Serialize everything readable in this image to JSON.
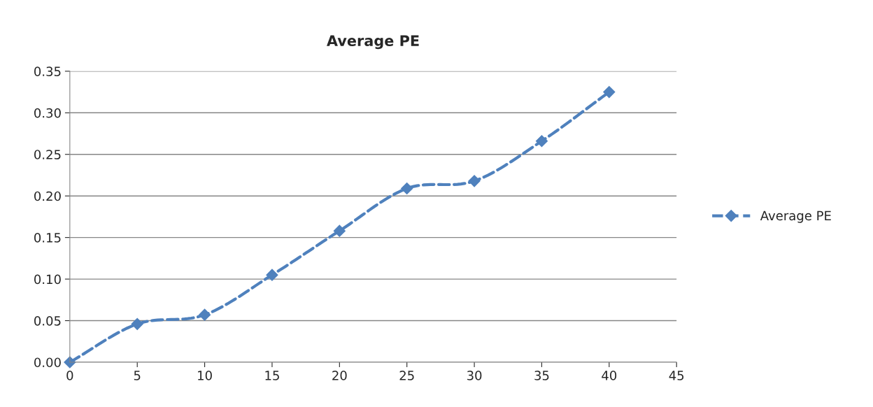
{
  "chart_data": {
    "type": "line",
    "title": "Average PE",
    "x": [
      0,
      5,
      10,
      15,
      20,
      25,
      30,
      35,
      40
    ],
    "series": [
      {
        "name": "Average PE",
        "color": "#4f81bd",
        "values": [
          0.0,
          0.046,
          0.057,
          0.105,
          0.158,
          0.209,
          0.218,
          0.266,
          0.325
        ]
      }
    ],
    "xlim": [
      0,
      45
    ],
    "xticks": [
      0,
      5,
      10,
      15,
      20,
      25,
      30,
      35,
      40,
      45
    ],
    "ylim": [
      0,
      0.35
    ],
    "yticks": [
      {
        "value": 0,
        "label": "0.00"
      },
      {
        "value": 0.05,
        "label": "0.05"
      },
      {
        "value": 0.1,
        "label": "0.10"
      },
      {
        "value": 0.15,
        "label": "0.15"
      },
      {
        "value": 0.2,
        "label": "0.20"
      },
      {
        "value": 0.25,
        "label": "0.25"
      },
      {
        "value": 0.3,
        "label": "0.30"
      },
      {
        "value": 0.35,
        "label": "0.35"
      }
    ],
    "grid": "y",
    "legend": "right",
    "marker": "diamond",
    "line_style": "dashed"
  }
}
